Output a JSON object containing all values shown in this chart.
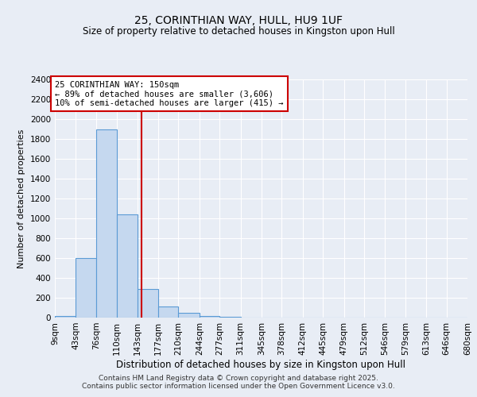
{
  "title1": "25, CORINTHIAN WAY, HULL, HU9 1UF",
  "title2": "Size of property relative to detached houses in Kingston upon Hull",
  "xlabel": "Distribution of detached houses by size in Kingston upon Hull",
  "ylabel": "Number of detached properties",
  "bin_edges": [
    9,
    43,
    76,
    110,
    143,
    177,
    210,
    244,
    277,
    311,
    345,
    378,
    412,
    445,
    479,
    512,
    546,
    579,
    613,
    646,
    680
  ],
  "bar_heights": [
    20,
    600,
    1900,
    1040,
    290,
    110,
    45,
    20,
    5,
    2,
    1,
    0,
    0,
    0,
    0,
    0,
    0,
    0,
    0,
    0
  ],
  "bar_color": "#c5d8ef",
  "bar_edgecolor": "#5b9bd5",
  "bar_linewidth": 0.8,
  "vline_x": 150,
  "vline_color": "#cc0000",
  "vline_linewidth": 1.5,
  "annotation_line1": "25 CORINTHIAN WAY: 150sqm",
  "annotation_line2": "← 89% of detached houses are smaller (3,606)",
  "annotation_line3": "10% of semi-detached houses are larger (415) →",
  "annotation_box_color": "#cc0000",
  "annotation_text_color": "#000000",
  "ylim": [
    0,
    2400
  ],
  "yticks": [
    0,
    200,
    400,
    600,
    800,
    1000,
    1200,
    1400,
    1600,
    1800,
    2000,
    2200,
    2400
  ],
  "bg_color": "#e8edf5",
  "plot_bg_color": "#e8edf5",
  "grid_color": "#ffffff",
  "footer1": "Contains HM Land Registry data © Crown copyright and database right 2025.",
  "footer2": "Contains public sector information licensed under the Open Government Licence v3.0.",
  "title1_fontsize": 10,
  "title2_fontsize": 8.5,
  "xlabel_fontsize": 8.5,
  "ylabel_fontsize": 8,
  "tick_fontsize": 7.5,
  "annotation_fontsize": 7.5,
  "footer_fontsize": 6.5
}
